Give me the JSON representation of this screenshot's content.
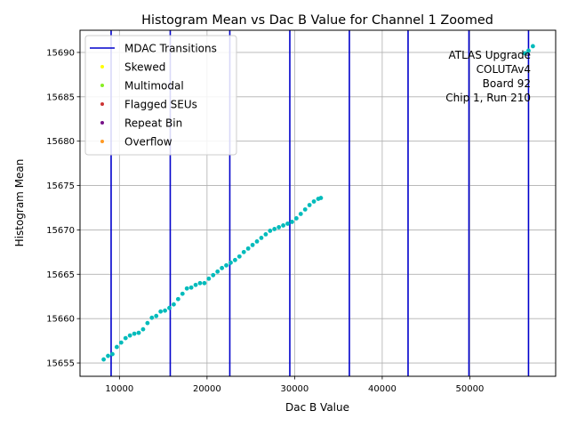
{
  "chart_data": {
    "type": "scatter",
    "title": "Histogram Mean vs Dac B Value for Channel 1 Zoomed",
    "xlabel": "Dac B Value",
    "ylabel": "Histogram Mean",
    "xlim": [
      5500,
      59800
    ],
    "ylim": [
      15653.5,
      15692.5
    ],
    "xticks": [
      10000,
      20000,
      30000,
      40000,
      50000
    ],
    "xtick_labels": [
      "10000",
      "20000",
      "30000",
      "40000",
      "50000"
    ],
    "yticks": [
      15655,
      15660,
      15665,
      15670,
      15675,
      15680,
      15685,
      15690
    ],
    "ytick_labels": [
      "15655",
      "15660",
      "15665",
      "15670",
      "15675",
      "15680",
      "15685",
      "15690"
    ],
    "grid": true,
    "legend_position": "top-left",
    "legend": [
      {
        "label": "MDAC Transitions",
        "kind": "line",
        "color": "#0000cc"
      },
      {
        "label": "Skewed",
        "kind": "dot",
        "color": "#ffff00"
      },
      {
        "label": "Multimodal",
        "kind": "dot",
        "color": "#88ee22"
      },
      {
        "label": "Flagged SEUs",
        "kind": "dot",
        "color": "#cc3333"
      },
      {
        "label": "Repeat Bin",
        "kind": "dot",
        "color": "#771188"
      },
      {
        "label": "Overflow",
        "kind": "dot",
        "color": "#ff9922"
      }
    ],
    "annotation": [
      "ATLAS Upgrade",
      "COLUTAv4",
      "Board 92",
      "Chip 1, Run 210"
    ],
    "mdac_transitions": [
      9050,
      15800,
      22600,
      29450,
      36250,
      42950,
      49900,
      56700
    ],
    "series": [
      {
        "color": "#00bbbb",
        "x": [
          8200,
          8700,
          9200,
          9700,
          10200,
          10700,
          11200,
          11700,
          12200,
          12700,
          13200,
          13700,
          14200,
          14700,
          15200,
          15700,
          16200,
          16700,
          17200,
          17700,
          18200,
          18700,
          19200,
          19700,
          20200,
          20700,
          21200,
          21700,
          22200,
          22700,
          23200,
          23700,
          24200,
          24700,
          25200,
          25700,
          26200,
          26700,
          27200,
          27700,
          28200,
          28700,
          29200,
          29700,
          30200,
          30700,
          31200,
          31700,
          32200,
          32700,
          33000,
          56300,
          56700,
          57200
        ],
        "y": [
          15655.4,
          15655.8,
          15656.0,
          15656.8,
          15657.3,
          15657.8,
          15658.1,
          15658.3,
          15658.4,
          15658.8,
          15659.5,
          15660.1,
          15660.3,
          15660.8,
          15660.9,
          15661.2,
          15661.6,
          15662.2,
          15662.8,
          15663.4,
          15663.5,
          15663.8,
          15664.0,
          15664.0,
          15664.5,
          15664.9,
          15665.3,
          15665.7,
          15666.0,
          15666.3,
          15666.6,
          15667.0,
          15667.5,
          15667.9,
          15668.3,
          15668.7,
          15669.1,
          15669.5,
          15669.9,
          15670.1,
          15670.3,
          15670.5,
          15670.7,
          15670.9,
          15671.3,
          15671.8,
          15672.3,
          15672.8,
          15673.2,
          15673.5,
          15673.6,
          15689.9,
          15690.2,
          15690.7
        ]
      }
    ]
  }
}
